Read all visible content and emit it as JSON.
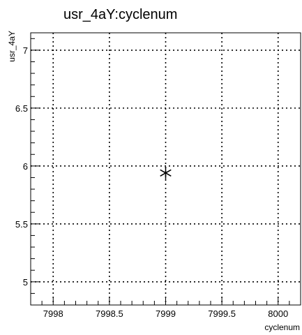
{
  "chart_data": {
    "type": "scatter",
    "title": "usr_4aY:cyclenum",
    "xlabel": "cyclenum",
    "ylabel": "usr_4aY",
    "xlim": [
      7997.8,
      8000.2
    ],
    "ylim": [
      4.8,
      7.15
    ],
    "x_ticks": [
      {
        "value": 7998,
        "label": "7998"
      },
      {
        "value": 7998.5,
        "label": "7998.5"
      },
      {
        "value": 7999,
        "label": "7999"
      },
      {
        "value": 7999.5,
        "label": "7999.5"
      },
      {
        "value": 8000,
        "label": "8000"
      }
    ],
    "y_ticks": [
      {
        "value": 5,
        "label": "5"
      },
      {
        "value": 5.5,
        "label": "5.5"
      },
      {
        "value": 6,
        "label": "6"
      },
      {
        "value": 6.5,
        "label": "6.5"
      },
      {
        "value": 7,
        "label": "7"
      }
    ],
    "x_minor_step": 0.1,
    "y_minor_step": 0.1,
    "grid": true,
    "marker": "asterisk",
    "points": [
      {
        "x": 7999,
        "y": 5.94
      }
    ]
  }
}
